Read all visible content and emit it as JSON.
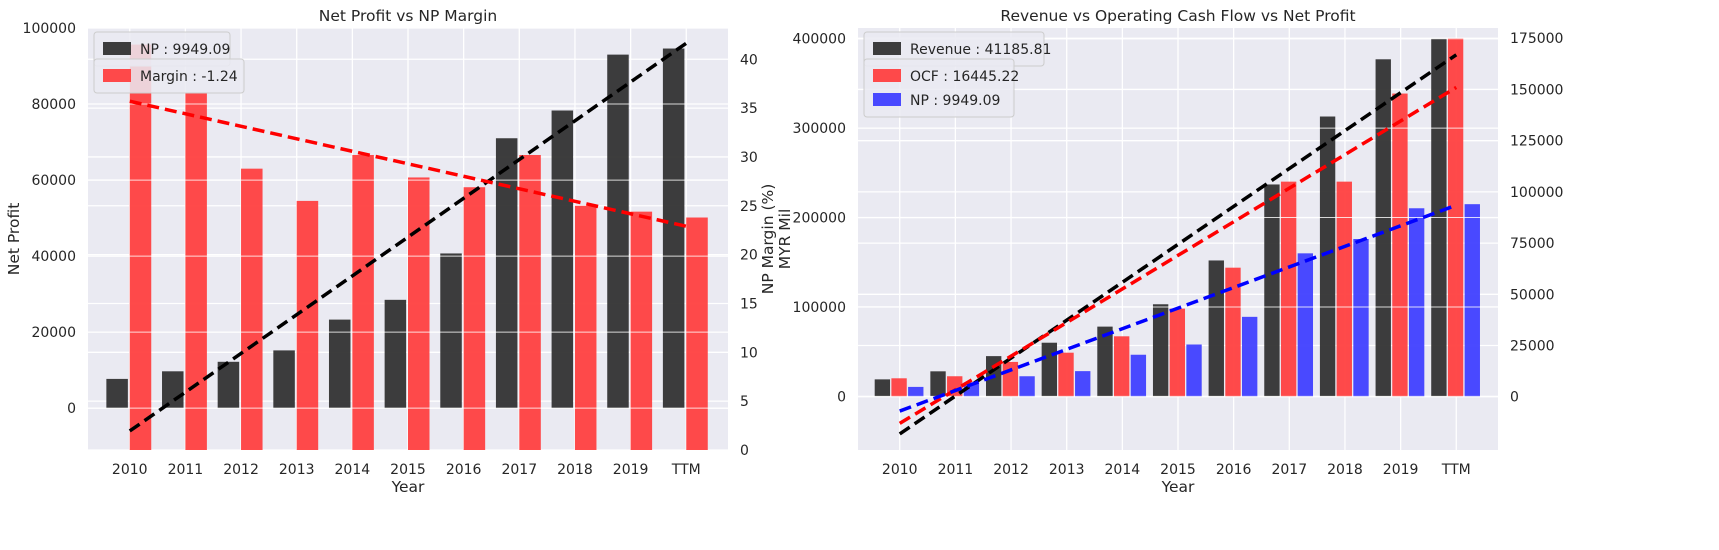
{
  "chart_data": [
    {
      "type": "bar",
      "title": "Net Profit vs NP Margin",
      "xlabel": "Year",
      "ylabel": "Net Profit",
      "ylabel_right": "NP Margin (%)",
      "categories": [
        "2010",
        "2011",
        "2012",
        "2013",
        "2014",
        "2015",
        "2016",
        "2017",
        "2018",
        "2019",
        "TTM"
      ],
      "ylim": [
        -11000,
        100000
      ],
      "yticks": [
        0,
        20000,
        40000,
        60000,
        80000,
        100000
      ],
      "ylim_right": [
        0,
        43.2
      ],
      "yticks_right": [
        0,
        5,
        10,
        15,
        20,
        25,
        30,
        35,
        40
      ],
      "grid": true,
      "legend_position": "top-left",
      "series": [
        {
          "name": "NP : 9949.09",
          "axis": "left",
          "color": "#333333",
          "values": [
            7700,
            9700,
            12200,
            15200,
            23300,
            28500,
            40700,
            71000,
            78300,
            93000,
            94600
          ]
        },
        {
          "name": "Margin : -1.24",
          "axis": "right",
          "color": "#ff4040",
          "values": [
            41.5,
            36.5,
            28.8,
            25.5,
            30.2,
            27.9,
            26.9,
            30.2,
            25.0,
            24.4,
            23.8
          ]
        }
      ],
      "trendlines": [
        {
          "series": "NP",
          "axis": "left",
          "color": "#000000",
          "from": [
            0,
            -6000
          ],
          "to": [
            10,
            96000
          ]
        },
        {
          "series": "Margin",
          "axis": "right",
          "color": "#ff0000",
          "from": [
            0,
            35.7
          ],
          "to": [
            10,
            22.9
          ]
        }
      ]
    },
    {
      "type": "bar",
      "title": "Revenue vs Operating Cash Flow vs Net Profit",
      "xlabel": "Year",
      "ylabel": "",
      "ylabel_right": "MYR Mil",
      "categories": [
        "2010",
        "2011",
        "2012",
        "2013",
        "2014",
        "2015",
        "2016",
        "2017",
        "2018",
        "2019",
        "TTM"
      ],
      "ylim": [
        -60000,
        412000
      ],
      "yticks": [
        0,
        100000,
        200000,
        300000,
        400000
      ],
      "ylim_right": [
        -26000,
        180000
      ],
      "yticks_right": [
        0,
        25000,
        50000,
        75000,
        100000,
        125000,
        150000,
        175000
      ],
      "grid": true,
      "legend_position": "top-left",
      "series": [
        {
          "name": "Revenue : 41185.81",
          "axis": "left",
          "color": "#333333",
          "values": [
            19000,
            28000,
            45000,
            60000,
            78000,
            103000,
            152000,
            237000,
            313000,
            377000,
            400000
          ]
        },
        {
          "name": "OCF : 16445.22",
          "axis": "right",
          "color": "#ff4040",
          "values": [
            9000,
            10000,
            17000,
            21500,
            29500,
            43000,
            63000,
            105000,
            105000,
            148000,
            175000
          ]
        },
        {
          "name": "NP : 9949.09",
          "axis": "right",
          "color": "#4040ff",
          "values": [
            4800,
            7000,
            10000,
            12500,
            20500,
            25500,
            39000,
            70000,
            77000,
            92000,
            94000
          ]
        }
      ],
      "trendlines": [
        {
          "series": "Revenue",
          "axis": "left",
          "color": "#000000",
          "from": [
            0,
            -42000
          ],
          "to": [
            10,
            382000
          ]
        },
        {
          "series": "OCF",
          "axis": "right",
          "color": "#ff0000",
          "from": [
            0,
            -13000
          ],
          "to": [
            10,
            151000
          ]
        },
        {
          "series": "NP",
          "axis": "right",
          "color": "#0000ff",
          "from": [
            0,
            -7000
          ],
          "to": [
            10,
            93500
          ]
        }
      ]
    }
  ]
}
